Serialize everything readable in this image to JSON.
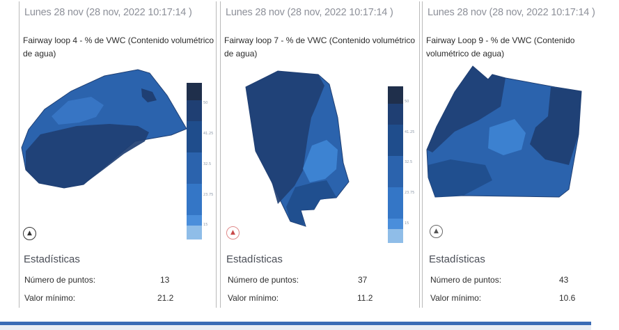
{
  "panels": [
    {
      "date": "Lunes 28 nov (28 nov, 2022 10:17:14 )",
      "title": "Fairway loop 4 - % de VWC (Contenido volumétrico de agua)",
      "scale_labels": [
        "50",
        "41.25",
        "32.5",
        "23.75",
        "15"
      ],
      "stats_title": "Estadísticas",
      "points_label": "Número de puntos:",
      "points_value": "13",
      "min_label": "Valor mínimo:",
      "min_value": "21.2"
    },
    {
      "date": "Lunes 28 nov (28 nov, 2022 10:17:14 )",
      "title": "Fairway loop 7 - % de VWC (Contenido volumétrico de agua)",
      "scale_labels": [
        "50",
        "41.25",
        "32.5",
        "23.75",
        "15"
      ],
      "stats_title": "Estadísticas",
      "points_label": "Número de puntos:",
      "points_value": "37",
      "min_label": "Valor mínimo:",
      "min_value": "11.2"
    },
    {
      "date": "Lunes 28 nov (28 nov, 2022 10:17:14 )",
      "title": "Fairway Loop 9 - % de VWC (Contenido volumétrico de agua)",
      "stats_title": "Estadísticas",
      "points_label": "Número de puntos:",
      "points_value": "43",
      "min_label": "Valor mínimo:",
      "min_value": "10.6"
    }
  ],
  "icons": {
    "north": "north-arrow-icon"
  },
  "colors": {
    "dark": "#1f3f73",
    "mid": "#2b63ad",
    "light": "#3f86d6",
    "pale": "#8fbde8",
    "accent_bar": "#3a6bb5"
  }
}
